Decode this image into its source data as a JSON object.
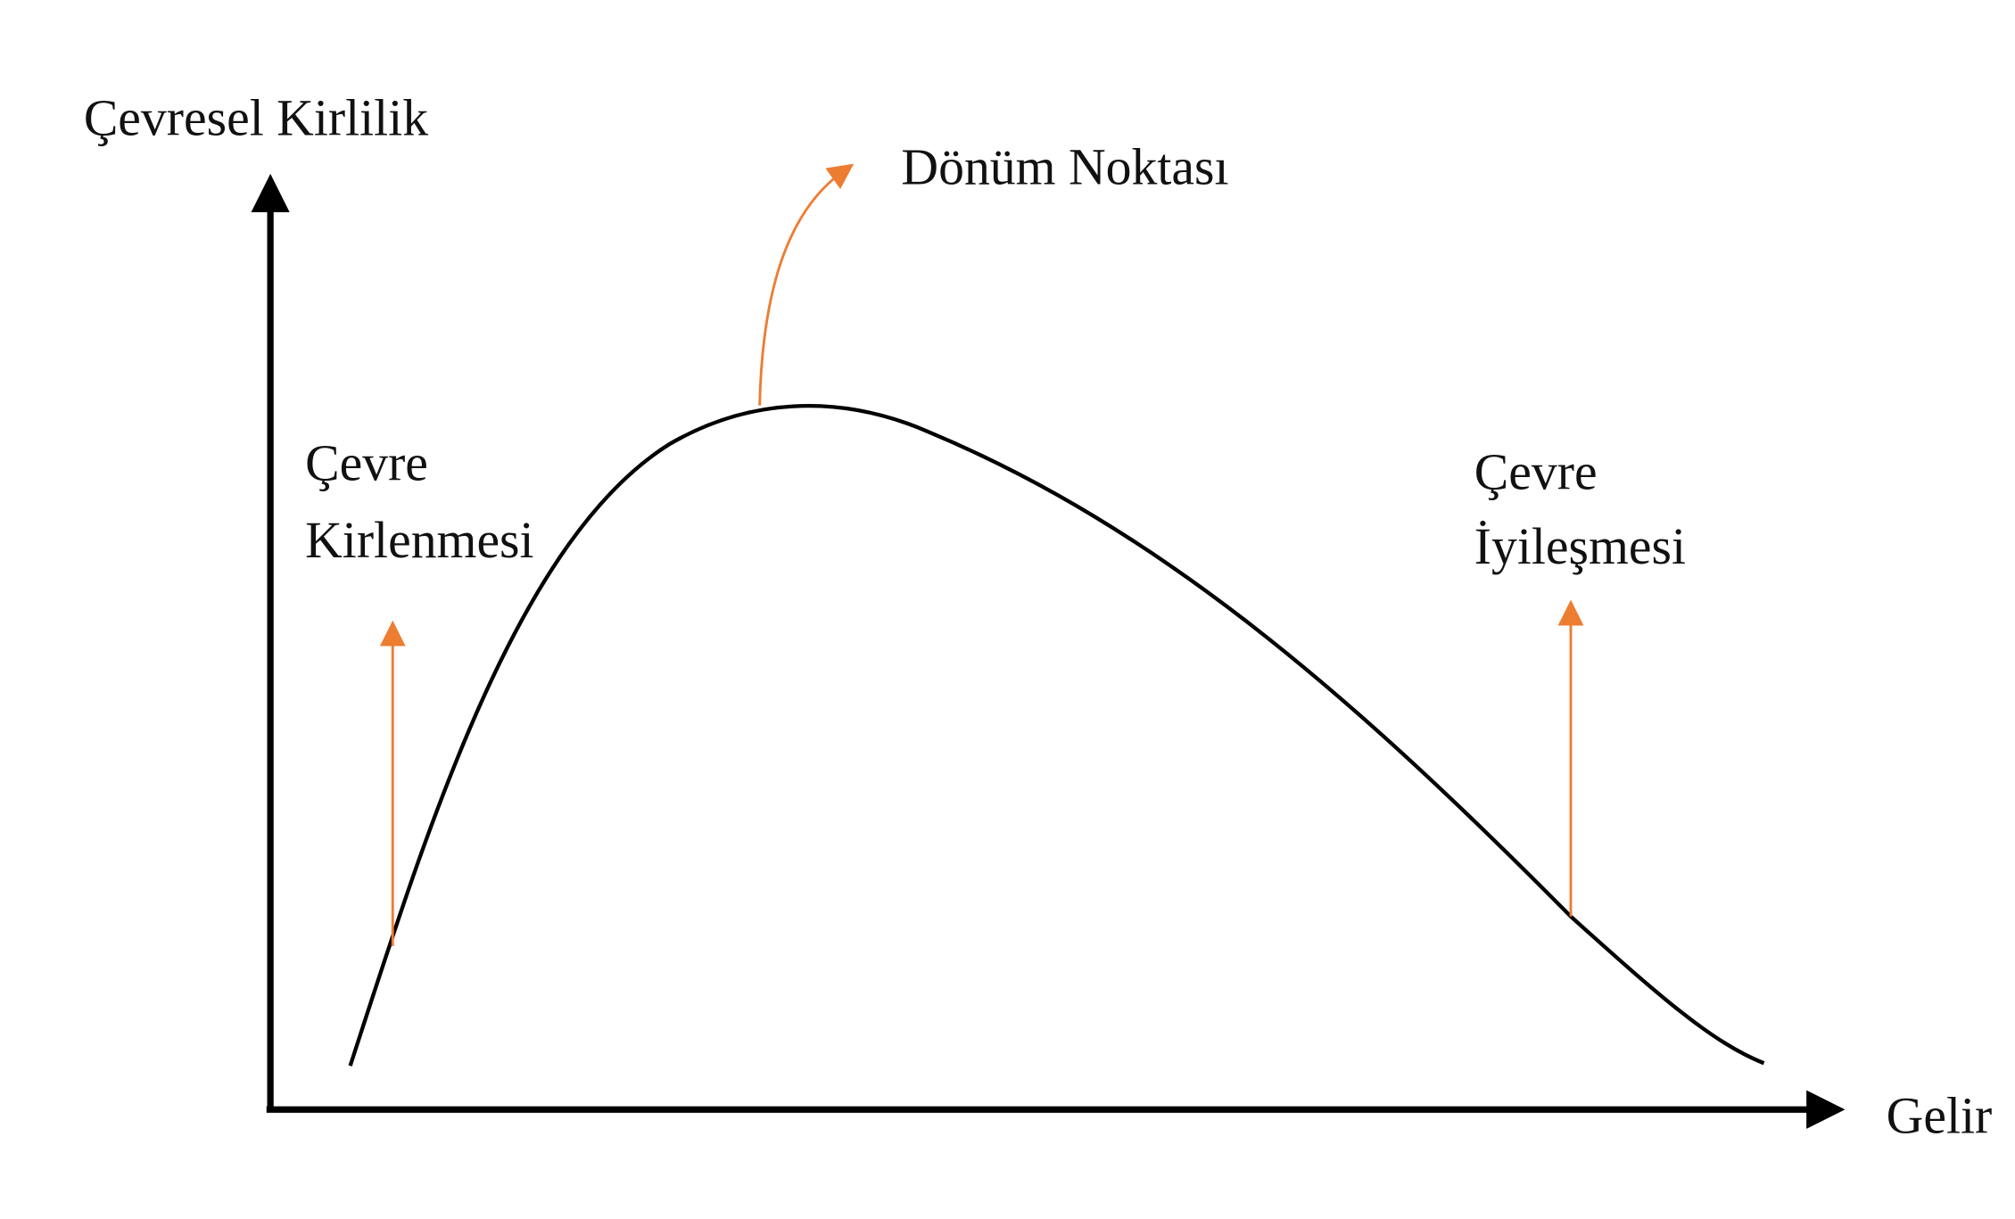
{
  "y_axis_label": "Çevresel Kirlilik",
  "x_axis_label": "Gelir",
  "turning_point": "Dönüm Noktası",
  "left_label": {
    "line1": "Çevre",
    "line2": "Kirlenmesi"
  },
  "right_label": {
    "line1": "Çevre",
    "line2": "İyileşmesi"
  }
}
